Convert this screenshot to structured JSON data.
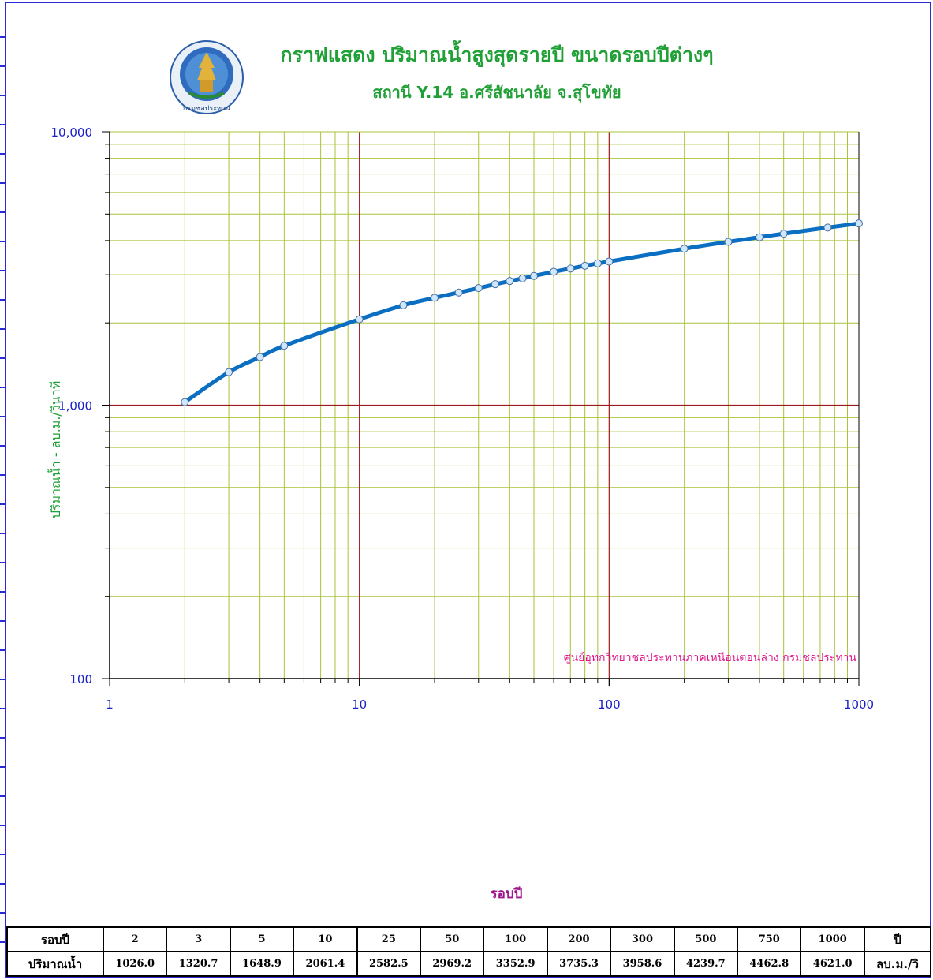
{
  "header": {
    "title": "กราฟแสดง ปริมาณน้ำสูงสุดรายปี ขนาดรอบปีต่างๆ",
    "subtitle": "สถานี Y.14 อ.ศรีสัชนาลัย จ.สุโขทัย",
    "logo_text": "กรมชลประทาน"
  },
  "chart_data": {
    "type": "line",
    "xscale": "log",
    "yscale": "log",
    "xlim": [
      1,
      1000
    ],
    "ylim": [
      100,
      10000
    ],
    "xlabel": "รอบปี",
    "ylabel": "ปริมาณน้ำ  -  ลบ.ม./วินาที",
    "x_ticks": [
      "1",
      "10",
      "100",
      "1000"
    ],
    "y_ticks": [
      "100",
      "1,000",
      "10,000"
    ],
    "grid": true,
    "annotation": "ศูนย์อุทกวิทยาชลประทานภาคเหนือนตอนล่าง  กรมชลประทาน",
    "x": [
      2,
      3,
      4,
      5,
      10,
      15,
      20,
      25,
      30,
      35,
      40,
      45,
      50,
      60,
      70,
      80,
      90,
      100,
      200,
      300,
      400,
      500,
      750,
      1000
    ],
    "y": [
      1026.0,
      1320.7,
      1500.0,
      1648.9,
      2061.4,
      2320.0,
      2470.0,
      2582.5,
      2680.0,
      2770.0,
      2845.0,
      2910.0,
      2969.2,
      3075.0,
      3160.0,
      3235.0,
      3300.0,
      3352.9,
      3735.3,
      3958.6,
      4115.0,
      4239.7,
      4462.8,
      4621.0
    ],
    "line_color": "#0a6fc2",
    "marker_color": "#cfe6ff",
    "major_grid_color": "#9b1b1b",
    "minor_grid_color": "#a8c43a"
  },
  "table": {
    "rows": [
      {
        "label": "รอบปี",
        "cells": [
          "2",
          "3",
          "5",
          "10",
          "25",
          "50",
          "100",
          "200",
          "300",
          "500",
          "750",
          "1000"
        ],
        "unit": "ปี"
      },
      {
        "label": "ปริมาณน้ำ",
        "cells": [
          "1026.0",
          "1320.7",
          "1648.9",
          "2061.4",
          "2582.5",
          "2969.2",
          "3352.9",
          "3735.3",
          "3958.6",
          "4239.7",
          "4462.8",
          "4621.0"
        ],
        "unit": "ลบ.ม./วิ"
      }
    ]
  }
}
